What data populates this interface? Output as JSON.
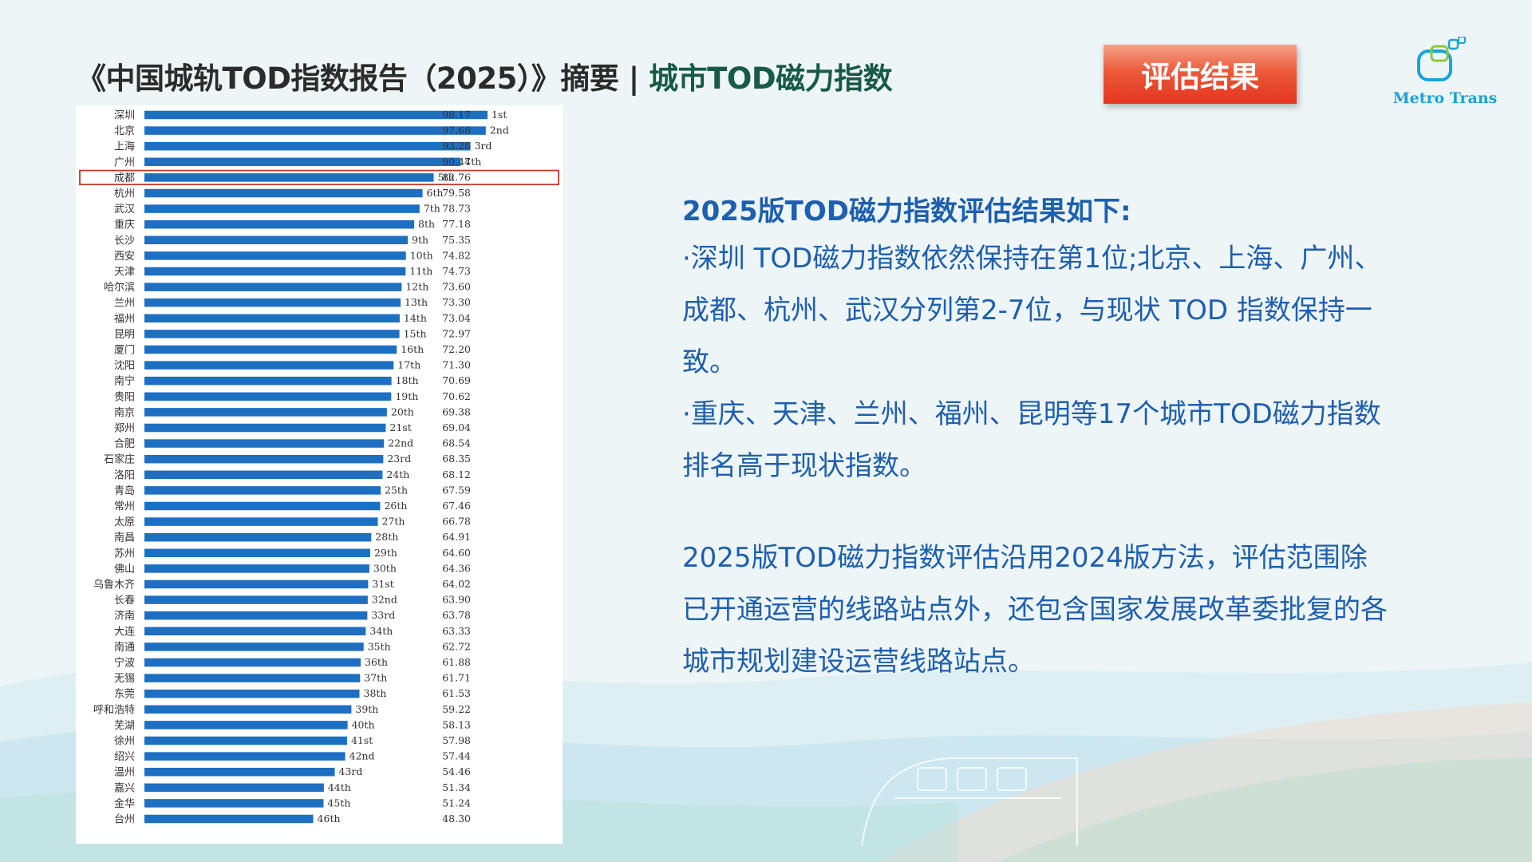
{
  "title": {
    "main": "《中国城轨TOD指数报告（2025）》摘要 | ",
    "highlight": "城市TOD磁力指数"
  },
  "badge": "评估结果",
  "logo": {
    "text": "Metro Trans"
  },
  "summary": {
    "heading": "2025版TOD磁力指数评估结果如下:",
    "bullet1": "·深圳 TOD磁力指数依然保持在第1位;北京、上海、广州、成都、杭州、武汉分列第2-7位，与现状 TOD 指数保持一致。",
    "bullet2": "·重庆、天津、兰州、福州、昆明等17个城市TOD磁力指数排名高于现状指数。",
    "para2": "2025版TOD磁力指数评估沿用2024版方法，评估范围除已开通运营的线路站点外，还包含国家发展改革委批复的各城市规划建设运营线路站点。"
  },
  "colors": {
    "bar": "#1d6fc2",
    "highlight_box": "#c0392b",
    "summary_text": "#1d5fb0"
  },
  "chart_data": {
    "type": "bar",
    "orientation": "horizontal",
    "highlight_city": "成都",
    "categories": [
      "深圳",
      "北京",
      "上海",
      "广州",
      "成都",
      "杭州",
      "武汉",
      "重庆",
      "长沙",
      "西安",
      "天津",
      "哈尔滨",
      "兰州",
      "福州",
      "昆明",
      "厦门",
      "沈阳",
      "南宁",
      "贵阳",
      "南京",
      "郑州",
      "合肥",
      "石家庄",
      "洛阳",
      "青岛",
      "常州",
      "太原",
      "南昌",
      "苏州",
      "佛山",
      "乌鲁木齐",
      "长春",
      "济南",
      "大连",
      "南通",
      "宁波",
      "无锡",
      "东莞",
      "呼和浩特",
      "芜湖",
      "徐州",
      "绍兴",
      "温州",
      "嘉兴",
      "金华",
      "台州"
    ],
    "ranks": [
      "1st",
      "2nd",
      "3rd",
      "4th",
      "5th",
      "6th",
      "7th",
      "8th",
      "9th",
      "10th",
      "11th",
      "12th",
      "13th",
      "14th",
      "15th",
      "16th",
      "17th",
      "18th",
      "19th",
      "20th",
      "21st",
      "22nd",
      "23rd",
      "24th",
      "25th",
      "26th",
      "27th",
      "28th",
      "29th",
      "30th",
      "31st",
      "32nd",
      "33rd",
      "34th",
      "35th",
      "36th",
      "37th",
      "38th",
      "39th",
      "40th",
      "41st",
      "42nd",
      "43rd",
      "44th",
      "45th",
      "46th"
    ],
    "values": [
      98.17,
      97.68,
      93.28,
      90.47,
      82.76,
      79.58,
      78.73,
      77.18,
      75.35,
      74.82,
      74.73,
      73.6,
      73.3,
      73.04,
      72.97,
      72.2,
      71.3,
      70.69,
      70.62,
      69.38,
      69.04,
      68.54,
      68.35,
      68.12,
      67.59,
      67.46,
      66.78,
      64.91,
      64.6,
      64.36,
      64.02,
      63.9,
      63.78,
      63.33,
      62.72,
      61.88,
      61.71,
      61.53,
      59.22,
      58.13,
      57.98,
      57.44,
      54.46,
      51.34,
      51.24,
      48.3
    ],
    "value_labels": [
      "98.17",
      "97.68",
      "93.28",
      "90.47",
      "82.76",
      "79.58",
      "78.73",
      "77.18",
      "75.35",
      "74.82",
      "74.73",
      "73.60",
      "73.30",
      "73.04",
      "72.97",
      "72.20",
      "71.30",
      "70.69",
      "70.62",
      "69.38",
      "69.04",
      "68.54",
      "68.35",
      "68.12",
      "67.59",
      "67.46",
      "66.78",
      "64.91",
      "64.60",
      "64.36",
      "64.02",
      "63.90",
      "63.78",
      "63.33",
      "62.72",
      "61.88",
      "61.71",
      "61.53",
      "59.22",
      "58.13",
      "57.98",
      "57.44",
      "54.46",
      "51.34",
      "51.24",
      "48.30"
    ],
    "xlim": [
      0,
      100
    ],
    "grid": false,
    "legend": "none"
  }
}
